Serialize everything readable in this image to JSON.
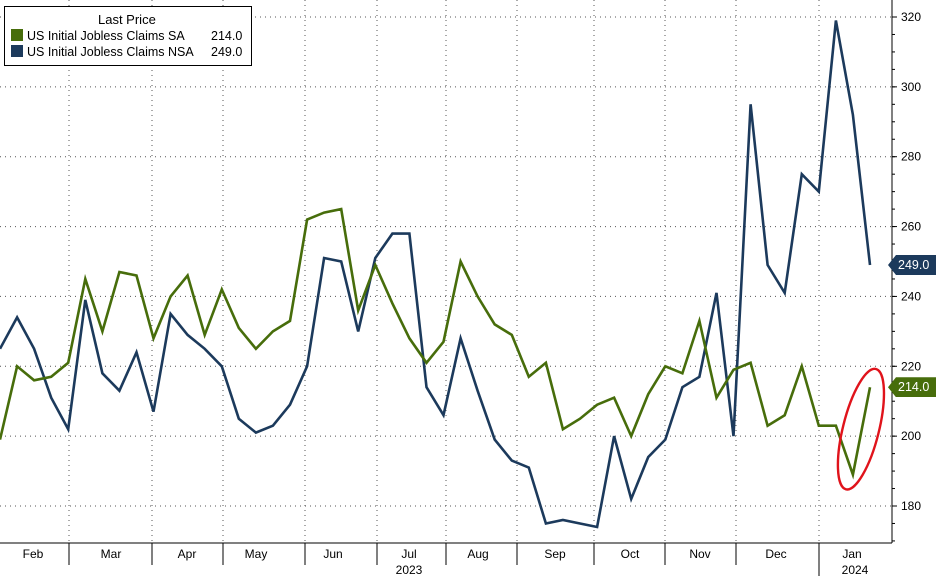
{
  "chart_data": {
    "type": "line",
    "year_labels": [
      "2023",
      "2024"
    ],
    "month_labels": [
      "Feb",
      "Mar",
      "Apr",
      "May",
      "Jun",
      "Jul",
      "Aug",
      "Sep",
      "Oct",
      "Nov",
      "Dec",
      "Jan"
    ],
    "legend": {
      "title": "Last Price",
      "placement": "top-left"
    },
    "y_axis": {
      "ticks": [
        180,
        200,
        220,
        240,
        260,
        280,
        300,
        320
      ],
      "ylim": [
        170,
        327
      ],
      "position": "right",
      "grid": "dotted"
    },
    "series": [
      {
        "name": "US Initial Jobless Claims SA",
        "last_value_label": "214.0",
        "color": "#476d0b",
        "values": [
          199,
          220,
          216,
          217,
          221,
          245,
          230,
          247,
          246,
          228,
          240,
          246,
          229,
          242,
          231,
          225,
          230,
          233,
          262,
          264,
          265,
          236,
          249,
          238,
          228,
          221,
          227,
          250,
          240,
          232,
          229,
          217,
          221,
          202,
          205,
          209,
          211,
          200,
          212,
          220,
          218,
          233,
          211,
          219,
          221,
          203,
          206,
          220,
          203,
          203,
          189,
          214
        ]
      },
      {
        "name": "US Initial Jobless Claims NSA",
        "last_value_label": "249.0",
        "color": "#1c3a5c",
        "values": [
          225,
          234,
          225,
          211,
          202,
          239,
          218,
          213,
          224,
          207,
          235,
          229,
          225,
          220,
          205,
          201,
          203,
          209,
          220,
          251,
          250,
          230,
          251,
          258,
          258,
          214,
          206,
          228,
          213,
          199,
          193,
          191,
          175,
          176,
          175,
          174,
          200,
          182,
          194,
          199,
          214,
          217,
          241,
          200,
          295,
          249,
          241,
          275,
          270,
          319,
          292,
          249
        ]
      }
    ],
    "x_label_positions": [
      2.5,
      6.8,
      11,
      15.2,
      19.5,
      23.8,
      28,
      32.5,
      37,
      41.3,
      45.7,
      50
    ]
  },
  "icons": {
    "highlight": "red-ellipse-highlight"
  }
}
